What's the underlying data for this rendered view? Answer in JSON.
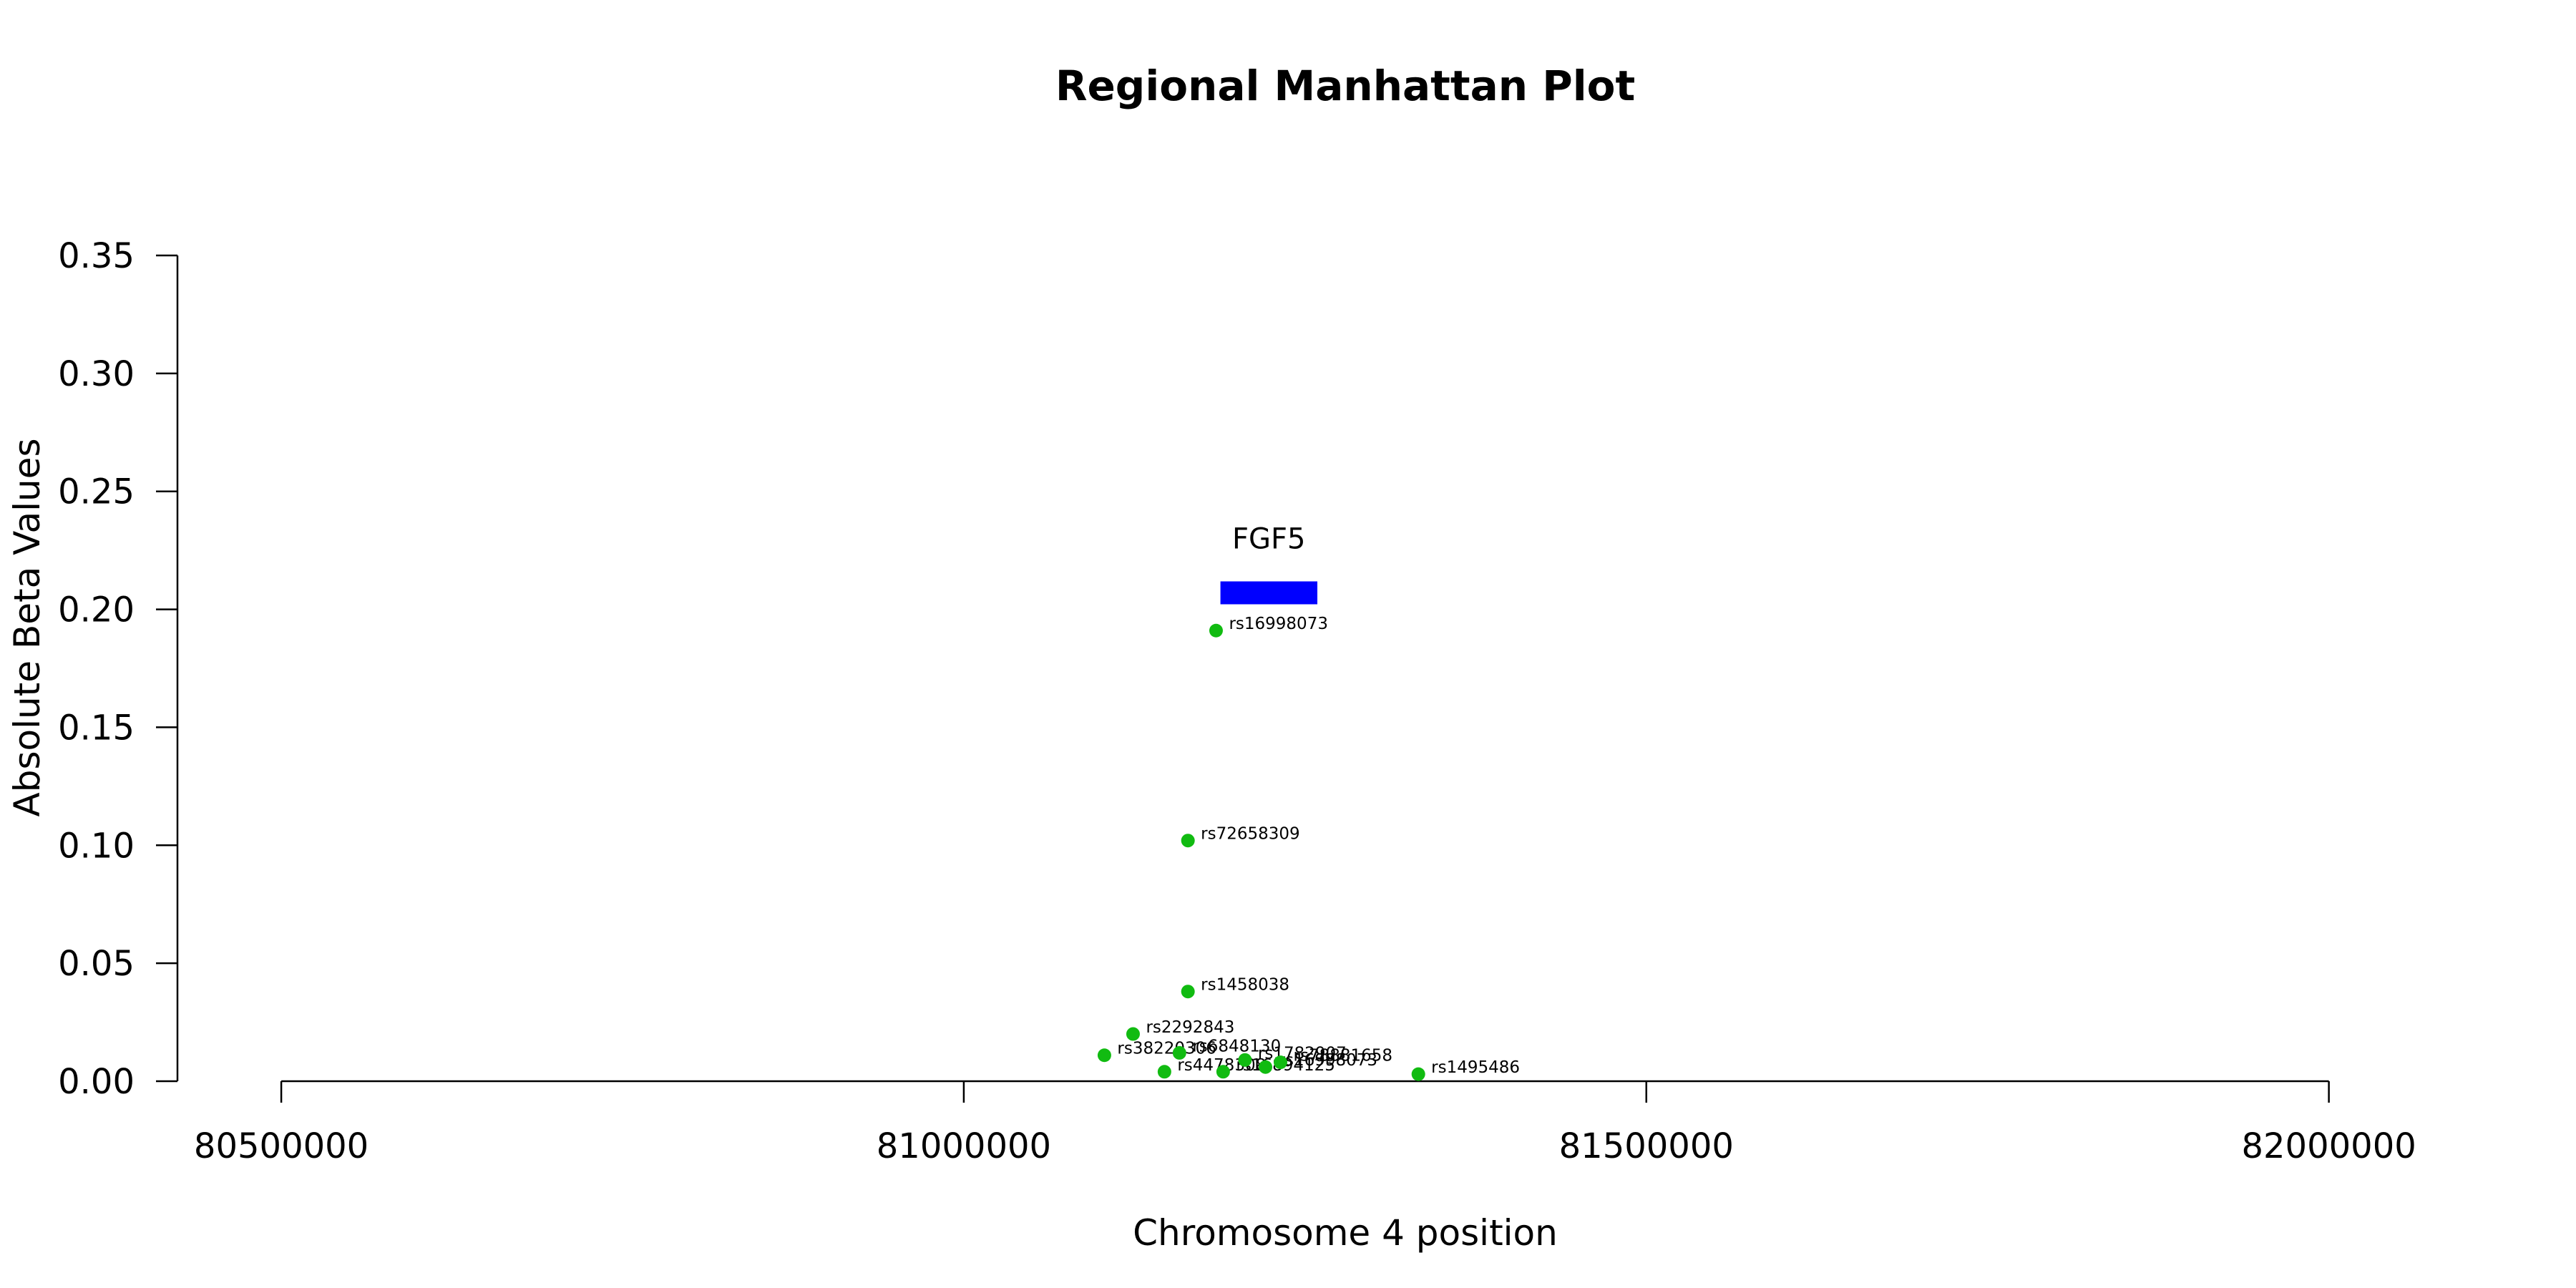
{
  "chart_data": {
    "type": "scatter",
    "title": "Regional Manhattan Plot",
    "xlabel": "Chromosome 4 position",
    "ylabel": "Absolute Beta Values",
    "xlim": [
      80425000,
      82050000
    ],
    "ylim": [
      0,
      0.35
    ],
    "x_ticks": [
      80500000,
      81000000,
      81500000,
      82000000
    ],
    "x_tick_labels": [
      "80500000",
      "81000000",
      "81500000",
      "82000000"
    ],
    "y_ticks": [
      0,
      0.05,
      0.1,
      0.15,
      0.2,
      0.25,
      0.3,
      0.35
    ],
    "y_tick_labels": [
      "0.00",
      "0.05",
      "0.10",
      "0.15",
      "0.20",
      "0.25",
      "0.30",
      "0.35"
    ],
    "grid": false,
    "legend": "none",
    "point_color": "#11bb11",
    "gene_color": "#0000ff",
    "genes": [
      {
        "name": "FGF5",
        "start": 81188000,
        "end": 81259000,
        "y": 0.207
      }
    ],
    "points": [
      {
        "snp": "rs16998073",
        "x": 81184800,
        "y": 0.191
      },
      {
        "snp": "rs72658309",
        "x": 81164200,
        "y": 0.102
      },
      {
        "snp": "rs1458038",
        "x": 81164200,
        "y": 0.038
      },
      {
        "snp": "rs2292843",
        "x": 81124000,
        "y": 0.02
      },
      {
        "snp": "rs38220306",
        "x": 81103000,
        "y": 0.011
      },
      {
        "snp": "rs6848130",
        "x": 81158000,
        "y": 0.012
      },
      {
        "snp": "rs4478308",
        "x": 81147000,
        "y": 0.004
      },
      {
        "snp": "rs16894125",
        "x": 81190000,
        "y": 0.004
      },
      {
        "snp": "rs1782907",
        "x": 81206000,
        "y": 0.009
      },
      {
        "snp": "rs16998073",
        "x": 81221000,
        "y": 0.006
      },
      {
        "snp": "rs78881658",
        "x": 81232000,
        "y": 0.008
      },
      {
        "snp": "rs1495486",
        "x": 81333000,
        "y": 0.003
      }
    ]
  }
}
